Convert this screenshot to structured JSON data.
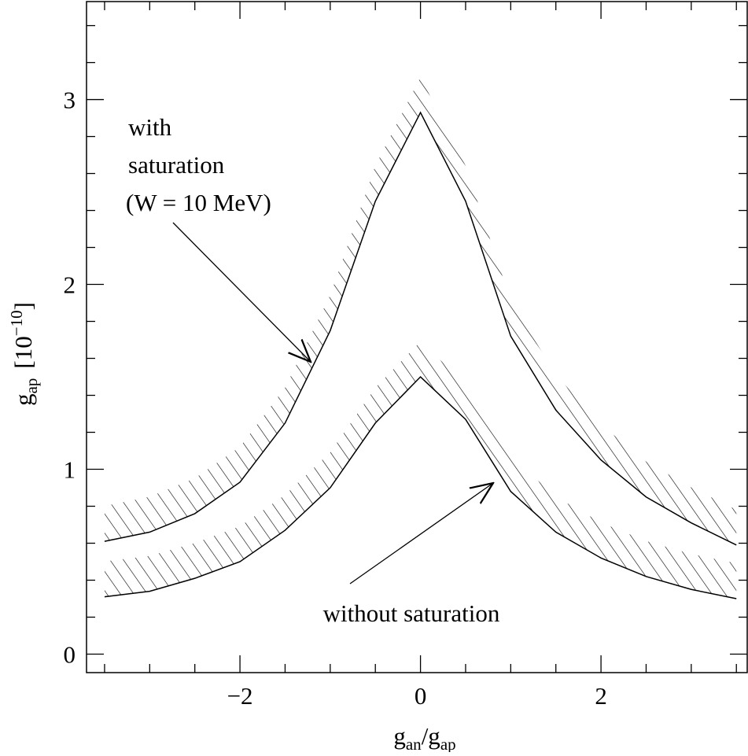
{
  "chart_data": {
    "type": "line",
    "x_label": [
      "g",
      "an",
      "/g",
      "ap"
    ],
    "y_label": [
      "g",
      "ap",
      "[10",
      "−10",
      "]"
    ],
    "x": [
      -3.5,
      -3,
      -2.5,
      -2,
      -1.5,
      -1,
      -0.5,
      0,
      0.5,
      1,
      1.5,
      2,
      2.5,
      3,
      3.5
    ],
    "series": [
      {
        "color": "#000000",
        "values": [
          0.61,
          0.66,
          0.76,
          0.93,
          1.25,
          1.75,
          2.45,
          2.93,
          2.45,
          1.72,
          1.32,
          1.05,
          0.85,
          0.71,
          0.59
        ]
      },
      {
        "color": "#000000",
        "values": [
          0.31,
          0.34,
          0.41,
          0.5,
          0.67,
          0.9,
          1.25,
          1.5,
          1.27,
          0.88,
          0.66,
          0.52,
          0.42,
          0.35,
          0.3
        ]
      }
    ],
    "annotations": [
      "with",
      "saturation",
      "(W = 10 MeV)",
      "without saturation"
    ],
    "xlim": [
      -3.7,
      3.62
    ],
    "ylim": [
      -0.1,
      3.53
    ],
    "xticks": [
      {
        "value": -2,
        "label": "−2"
      },
      0,
      2
    ],
    "yticks": [
      0,
      1,
      2,
      3
    ],
    "xminor_ticks": [
      -3.5,
      -3,
      -2.5,
      -1.5,
      -1,
      -0.5,
      0.5,
      1,
      1.5,
      2.5,
      3,
      3.5
    ],
    "yminor_ticks": [
      0.2,
      0.4,
      0.6,
      0.8,
      1.2,
      1.4,
      1.6,
      1.8,
      2.2,
      2.4,
      2.6,
      2.8,
      3.2,
      3.4
    ],
    "hatched": true
  }
}
